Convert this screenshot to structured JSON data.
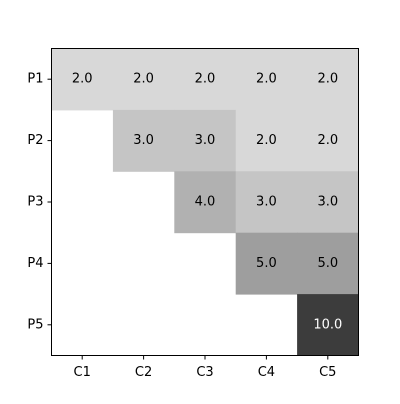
{
  "chart_data": {
    "type": "heatmap",
    "title": "",
    "xlabel": "",
    "ylabel": "",
    "x_categories": [
      "C1",
      "C2",
      "C3",
      "C4",
      "C5"
    ],
    "y_categories": [
      "P1",
      "P2",
      "P3",
      "P4",
      "P5"
    ],
    "values": [
      [
        2.0,
        2.0,
        2.0,
        2.0,
        2.0
      ],
      [
        null,
        3.0,
        3.0,
        2.0,
        2.0
      ],
      [
        null,
        null,
        4.0,
        3.0,
        3.0
      ],
      [
        null,
        null,
        null,
        5.0,
        5.0
      ],
      [
        null,
        null,
        null,
        null,
        10.0
      ]
    ],
    "value_labels": [
      [
        "2.0",
        "2.0",
        "2.0",
        "2.0",
        "2.0"
      ],
      [
        "",
        "3.0",
        "3.0",
        "2.0",
        "2.0"
      ],
      [
        "",
        "",
        "4.0",
        "3.0",
        "3.0"
      ],
      [
        "",
        "",
        "",
        "5.0",
        "5.0"
      ],
      [
        "",
        "",
        "",
        "",
        "10.0"
      ]
    ],
    "color_scale": {
      "map": "grayscale-reversed",
      "min_value": 0,
      "max_value": 10.0,
      "low_color": "#ffffff",
      "high_color": "#000000"
    },
    "annotation_colors": {
      "dark_text": "#000000",
      "light_text": "#ffffff"
    },
    "grid": false,
    "legend": "none"
  }
}
